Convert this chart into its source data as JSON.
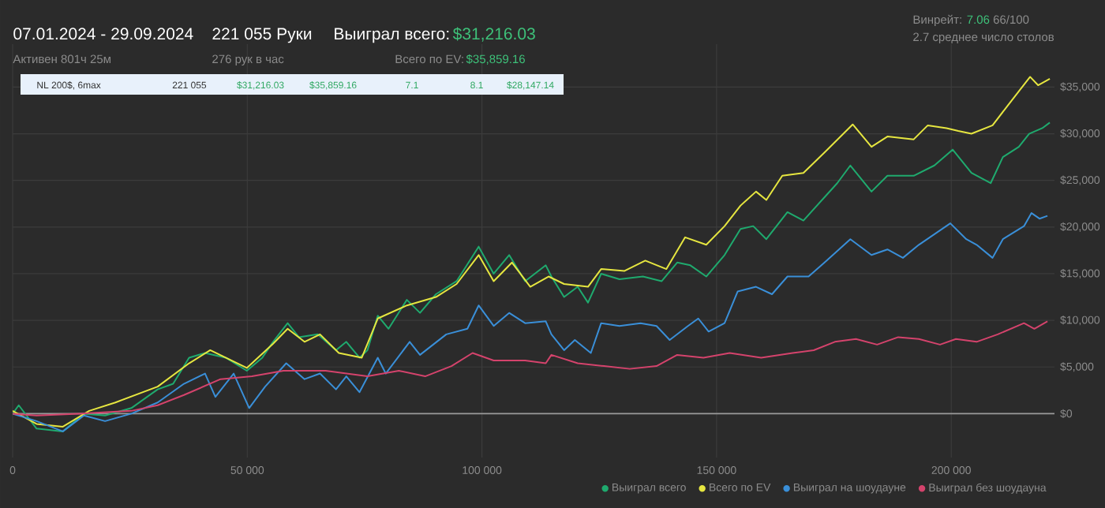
{
  "chart_data": {
    "type": "line",
    "title": "07.01.2024 - 29.09.2024",
    "subtitle": "Активен 801ч 25м",
    "annotations": [
      "221 055 Руки",
      "276 рук в час",
      "Выиграл всего:",
      "$31,216.03",
      "Всего по EV:",
      "$35,859.16",
      "Винрейт:",
      "7.06",
      "66/100",
      "2.7 среднее число столов",
      "NL 200$, 6max",
      "221 055",
      "$31,216.03",
      "$35,859.16",
      "7.1",
      "8.1",
      "$28,147.14"
    ],
    "xlim": [
      0,
      222000
    ],
    "ylim": [
      -4700,
      39600
    ],
    "xticks": [
      0,
      {
        "value": 50000,
        "label": "50 000"
      },
      {
        "value": 100000,
        "label": "100 000"
      },
      {
        "value": 150000,
        "label": "150 000"
      },
      {
        "value": 200000,
        "label": "200 000"
      }
    ],
    "yticks": [
      {
        "value": 0,
        "label": "$0"
      },
      {
        "value": 5000,
        "label": "$5,000"
      },
      {
        "value": 10000,
        "label": "$10,000"
      },
      {
        "value": 15000,
        "label": "$15,000"
      },
      {
        "value": 20000,
        "label": "$20,000"
      },
      {
        "value": 25000,
        "label": "$25,000"
      },
      {
        "value": 30000,
        "label": "$30,000"
      },
      {
        "value": 35000,
        "label": "$35,000"
      }
    ],
    "grid": true,
    "legend": "bottom",
    "ref_lines": [
      {
        "axis": "y",
        "value": 0,
        "color": "#9a9a9a"
      }
    ],
    "series": [
      {
        "name": "Выиграл всего",
        "color": "#1faa6e",
        "x": [
          0,
          1300,
          5100,
          10700,
          15200,
          19700,
          25300,
          30900,
          34200,
          37600,
          41000,
          45400,
          49900,
          53200,
          55500,
          58600,
          61000,
          65000,
          68900,
          71100,
          73900,
          75600,
          77800,
          80100,
          84000,
          86800,
          90200,
          94600,
          99300,
          102500,
          105800,
          109200,
          113600,
          114800,
          117500,
          120400,
          122600,
          125400,
          129300,
          134300,
          138300,
          141600,
          144400,
          147800,
          151700,
          155100,
          157800,
          160600,
          165100,
          168500,
          173000,
          175700,
          178500,
          183000,
          186400,
          192000,
          196400,
          200300,
          204300,
          208400,
          211000,
          214400,
          216600,
          219400,
          221000
        ],
        "values": [
          0,
          900,
          -1600,
          -1900,
          0,
          -200,
          600,
          2600,
          3200,
          6000,
          6500,
          6000,
          4600,
          6000,
          7700,
          9700,
          8200,
          8500,
          6800,
          7700,
          6000,
          6800,
          10500,
          9100,
          12200,
          10800,
          12800,
          14200,
          17900,
          15000,
          17000,
          14200,
          15900,
          14700,
          12500,
          13600,
          11900,
          15000,
          14400,
          14700,
          14200,
          16200,
          15900,
          14700,
          17000,
          19800,
          20100,
          18700,
          21600,
          20700,
          23200,
          24700,
          26600,
          23800,
          25500,
          25500,
          26600,
          28300,
          25800,
          24700,
          27500,
          28600,
          30000,
          30600,
          31200
        ]
      },
      {
        "name": "Всего по EV",
        "color": "#e6e640",
        "x": [
          0,
          5100,
          10700,
          16300,
          21900,
          30900,
          37600,
          42100,
          45400,
          49900,
          55500,
          58600,
          62200,
          65500,
          69500,
          74400,
          77800,
          84000,
          90200,
          94600,
          99300,
          102500,
          106400,
          110300,
          114200,
          117500,
          122600,
          125400,
          130400,
          134800,
          139300,
          143300,
          147800,
          151700,
          155100,
          158400,
          160600,
          164000,
          168500,
          173000,
          179000,
          183000,
          186400,
          192000,
          195000,
          199000,
          201500,
          204300,
          208800,
          212000,
          216800,
          218500,
          221000
        ],
        "values": [
          300,
          -1100,
          -1400,
          300,
          1200,
          2900,
          5400,
          6800,
          6000,
          4900,
          7500,
          9100,
          7700,
          8500,
          6500,
          6000,
          10200,
          11600,
          12500,
          13900,
          17000,
          14200,
          16200,
          13600,
          14700,
          13900,
          13600,
          15500,
          15300,
          16400,
          15500,
          18900,
          18100,
          20100,
          22300,
          23800,
          22900,
          25500,
          25800,
          28000,
          31000,
          28600,
          29700,
          29400,
          30900,
          30600,
          30300,
          30000,
          30900,
          33000,
          36100,
          35200,
          35900
        ]
      },
      {
        "name": "Выиграл на шоудауне",
        "color": "#3a8fd8",
        "x": [
          0,
          5100,
          10700,
          15200,
          19700,
          25300,
          30900,
          36500,
          41000,
          43200,
          47100,
          50400,
          53800,
          58300,
          62200,
          65500,
          68900,
          71100,
          73900,
          77800,
          79500,
          84600,
          86800,
          92400,
          96900,
          99300,
          102500,
          105800,
          109200,
          113600,
          114800,
          117500,
          119800,
          123200,
          125400,
          129300,
          133800,
          137200,
          140000,
          143900,
          146100,
          148300,
          151700,
          154500,
          158400,
          161800,
          165100,
          169600,
          173000,
          178500,
          183000,
          186400,
          189700,
          193100,
          199800,
          203200,
          205400,
          208800,
          211000,
          215500,
          217100,
          218800,
          220500
        ],
        "values": [
          0,
          -800,
          -1900,
          -200,
          -800,
          0,
          1200,
          3200,
          4300,
          1800,
          4300,
          600,
          2900,
          5400,
          3700,
          4300,
          2600,
          4000,
          2300,
          6000,
          4300,
          7700,
          6300,
          8500,
          9100,
          11600,
          9400,
          10800,
          9700,
          9900,
          8500,
          6800,
          7900,
          6500,
          9700,
          9400,
          9700,
          9400,
          7900,
          9400,
          10200,
          8800,
          9700,
          13100,
          13600,
          12800,
          14700,
          14700,
          16200,
          18700,
          17000,
          17600,
          16700,
          18100,
          20400,
          18700,
          18100,
          16700,
          18700,
          20100,
          21500,
          20900,
          21200
        ]
      },
      {
        "name": "Выиграл без шоудауна",
        "color": "#d4436c",
        "x": [
          0,
          5100,
          14100,
          25300,
          30900,
          36500,
          44300,
          51000,
          57700,
          66700,
          75600,
          82300,
          87900,
          93500,
          98000,
          102500,
          109200,
          113600,
          114800,
          120400,
          126000,
          131500,
          137200,
          141600,
          147200,
          152800,
          159500,
          166200,
          170700,
          175200,
          179700,
          184200,
          188700,
          193100,
          197600,
          201000,
          205400,
          209900,
          215500,
          217700,
          220500
        ],
        "values": [
          0,
          -200,
          0,
          300,
          900,
          2000,
          3700,
          4000,
          4600,
          4600,
          4000,
          4600,
          4000,
          5100,
          6500,
          5700,
          5700,
          5400,
          6300,
          5400,
          5100,
          4800,
          5100,
          6300,
          6000,
          6500,
          6000,
          6500,
          6800,
          7700,
          8000,
          7400,
          8200,
          8000,
          7400,
          8000,
          7700,
          8500,
          9700,
          9100,
          9900
        ]
      }
    ]
  }
}
